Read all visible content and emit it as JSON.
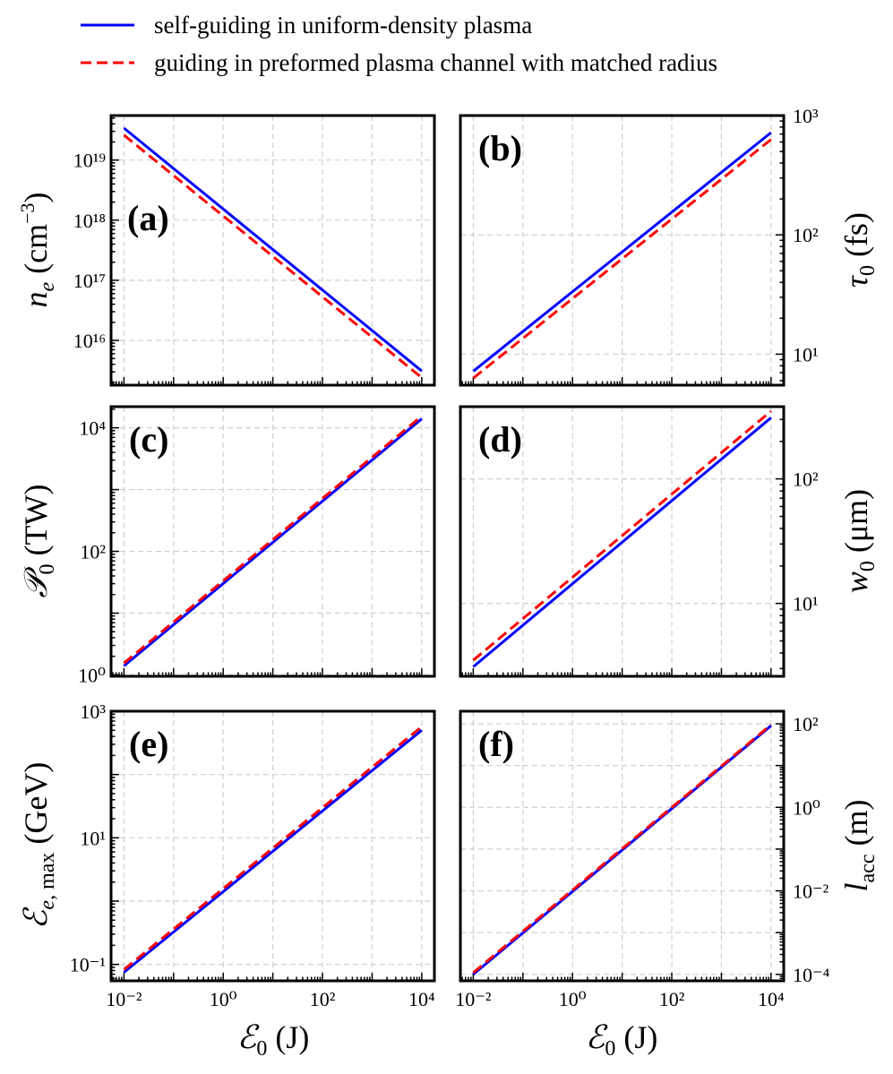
{
  "legend": {
    "items": [
      {
        "label": "self-guiding in uniform-density plasma",
        "color": "#0000ff",
        "dash": "solid"
      },
      {
        "label": "guiding in preformed plasma channel with matched radius",
        "color": "#ff0000",
        "dash": "dashed"
      }
    ]
  },
  "chart_data": [
    {
      "type": "line",
      "panel": "(a)",
      "scale": "log-log",
      "xlabel": "ℰ0 (J)",
      "ylabel": "ne (cm⁻³)",
      "yaxis_side": "left",
      "x_range": [
        0.0055,
        18000
      ],
      "y_range": [
        1800000000000000.0,
        5.5e+19
      ],
      "x_ticks": [
        {
          "v": 0.01,
          "label": "10⁻²"
        },
        {
          "v": 1,
          "label": "10⁰"
        },
        {
          "v": 100,
          "label": "10²"
        },
        {
          "v": 10000,
          "label": "10⁴"
        }
      ],
      "y_ticks": [
        {
          "v": 1e+16,
          "label": "10¹⁶"
        },
        {
          "v": 1e+17,
          "label": "10¹⁷"
        },
        {
          "v": 1e+18,
          "label": "10¹⁸"
        },
        {
          "v": 1e+19,
          "label": "10¹⁹"
        }
      ],
      "show_x_tick_labels": false,
      "series": [
        {
          "name": "self-guiding in uniform-density plasma",
          "color": "#0000ff",
          "dash": "solid",
          "x": [
            0.01,
            10000
          ],
          "y": [
            3.4e+19,
            3100000000000000.0
          ]
        },
        {
          "name": "guiding in preformed plasma channel with matched radius",
          "color": "#ff0000",
          "dash": "dashed",
          "x": [
            0.01,
            10000
          ],
          "y": [
            2.6e+19,
            2400000000000000.0
          ]
        }
      ]
    },
    {
      "type": "line",
      "panel": "(b)",
      "scale": "log-log",
      "xlabel": "ℰ0 (J)",
      "ylabel": "τ0 (fs)",
      "yaxis_side": "right",
      "x_range": [
        0.0055,
        18000
      ],
      "y_range": [
        5.5,
        1000
      ],
      "x_ticks": [
        {
          "v": 0.01,
          "label": "10⁻²"
        },
        {
          "v": 1,
          "label": "10⁰"
        },
        {
          "v": 100,
          "label": "10²"
        },
        {
          "v": 10000,
          "label": "10⁴"
        }
      ],
      "y_ticks": [
        {
          "v": 10,
          "label": "10¹"
        },
        {
          "v": 100,
          "label": "10²"
        },
        {
          "v": 1000,
          "label": "10³"
        }
      ],
      "show_x_tick_labels": false,
      "series": [
        {
          "name": "self-guiding in uniform-density plasma",
          "color": "#0000ff",
          "dash": "solid",
          "x": [
            0.01,
            10000
          ],
          "y": [
            7.2,
            720
          ]
        },
        {
          "name": "guiding in preformed plasma channel with matched radius",
          "color": "#ff0000",
          "dash": "dashed",
          "x": [
            0.01,
            10000
          ],
          "y": [
            6.3,
            630
          ]
        }
      ]
    },
    {
      "type": "line",
      "panel": "(c)",
      "scale": "log-log",
      "xlabel": "ℰ0 (J)",
      "ylabel": "𝒫0 (TW)",
      "yaxis_side": "left",
      "x_range": [
        0.0055,
        18000
      ],
      "y_range": [
        0.95,
        22000
      ],
      "x_ticks": [
        {
          "v": 0.01,
          "label": "10⁻²"
        },
        {
          "v": 1,
          "label": "10⁰"
        },
        {
          "v": 100,
          "label": "10²"
        },
        {
          "v": 10000,
          "label": "10⁴"
        }
      ],
      "y_ticks": [
        {
          "v": 1,
          "label": "10⁰"
        },
        {
          "v": 100,
          "label": "10²"
        },
        {
          "v": 10000,
          "label": "10⁴"
        }
      ],
      "show_x_tick_labels": false,
      "series": [
        {
          "name": "self-guiding in uniform-density plasma",
          "color": "#0000ff",
          "dash": "solid",
          "x": [
            0.01,
            10000
          ],
          "y": [
            1.4,
            14000
          ]
        },
        {
          "name": "guiding in preformed plasma channel with matched radius",
          "color": "#ff0000",
          "dash": "dashed",
          "x": [
            0.01,
            10000
          ],
          "y": [
            1.55,
            15500
          ]
        }
      ]
    },
    {
      "type": "line",
      "panel": "(d)",
      "scale": "log-log",
      "xlabel": "ℰ0 (J)",
      "ylabel": "w0 (μm)",
      "yaxis_side": "right",
      "x_range": [
        0.0055,
        18000
      ],
      "y_range": [
        2.6,
        380
      ],
      "x_ticks": [
        {
          "v": 0.01,
          "label": "10⁻²"
        },
        {
          "v": 1,
          "label": "10⁰"
        },
        {
          "v": 100,
          "label": "10²"
        },
        {
          "v": 10000,
          "label": "10⁴"
        }
      ],
      "y_ticks": [
        {
          "v": 10,
          "label": "10¹"
        },
        {
          "v": 100,
          "label": "10²"
        }
      ],
      "show_x_tick_labels": false,
      "series": [
        {
          "name": "self-guiding in uniform-density plasma",
          "color": "#0000ff",
          "dash": "solid",
          "x": [
            0.01,
            10000
          ],
          "y": [
            3.1,
            310
          ]
        },
        {
          "name": "guiding in preformed plasma channel with matched radius",
          "color": "#ff0000",
          "dash": "dashed",
          "x": [
            0.01,
            10000
          ],
          "y": [
            3.5,
            350
          ]
        }
      ]
    },
    {
      "type": "line",
      "panel": "(e)",
      "scale": "log-log",
      "xlabel": "ℰ0 (J)",
      "ylabel": "ℰe,max (GeV)",
      "yaxis_side": "left",
      "x_range": [
        0.0055,
        18000
      ],
      "y_range": [
        0.055,
        1000
      ],
      "x_ticks": [
        {
          "v": 0.01,
          "label": "10⁻²"
        },
        {
          "v": 1,
          "label": "10⁰"
        },
        {
          "v": 100,
          "label": "10²"
        },
        {
          "v": 10000,
          "label": "10⁴"
        }
      ],
      "y_ticks": [
        {
          "v": 0.1,
          "label": "10⁻¹"
        },
        {
          "v": 10,
          "label": "10¹"
        },
        {
          "v": 1000,
          "label": "10³"
        }
      ],
      "show_x_tick_labels": true,
      "series": [
        {
          "name": "self-guiding in uniform-density plasma",
          "color": "#0000ff",
          "dash": "solid",
          "x": [
            0.01,
            10000
          ],
          "y": [
            0.075,
            500
          ]
        },
        {
          "name": "guiding in preformed plasma channel with matched radius",
          "color": "#ff0000",
          "dash": "dashed",
          "x": [
            0.01,
            10000
          ],
          "y": [
            0.083,
            570
          ]
        }
      ]
    },
    {
      "type": "line",
      "panel": "(f)",
      "scale": "log-log",
      "xlabel": "ℰ0 (J)",
      "ylabel": "lacc (m)",
      "yaxis_side": "right",
      "x_range": [
        0.0055,
        18000
      ],
      "y_range": [
        7e-05,
        200
      ],
      "x_ticks": [
        {
          "v": 0.01,
          "label": "10⁻²"
        },
        {
          "v": 1,
          "label": "10⁰"
        },
        {
          "v": 100,
          "label": "10²"
        },
        {
          "v": 10000,
          "label": "10⁴"
        }
      ],
      "y_ticks": [
        {
          "v": 0.0001,
          "label": "10⁻⁴"
        },
        {
          "v": 0.01,
          "label": "10⁻²"
        },
        {
          "v": 1,
          "label": "10⁰"
        },
        {
          "v": 100,
          "label": "10²"
        }
      ],
      "show_x_tick_labels": true,
      "series": [
        {
          "name": "self-guiding in uniform-density plasma",
          "color": "#0000ff",
          "dash": "solid",
          "x": [
            0.01,
            10000
          ],
          "y": [
            0.0001,
            90
          ]
        },
        {
          "name": "guiding in preformed plasma channel with matched radius",
          "color": "#ff0000",
          "dash": "dashed",
          "x": [
            0.01,
            10000
          ],
          "y": [
            0.00011,
            95
          ]
        }
      ]
    }
  ]
}
